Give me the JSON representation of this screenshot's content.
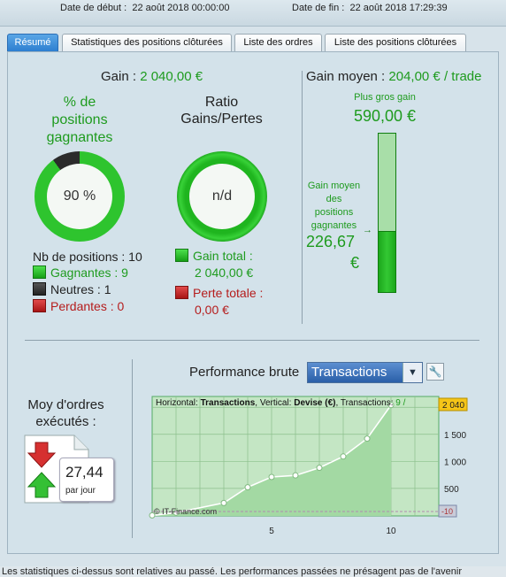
{
  "header": {
    "start_label": "Date de début :",
    "start_value": "22 août 2018 00:00:00",
    "end_label": "Date de fin :",
    "end_value": "22 août 2018 17:29:39"
  },
  "tabs": [
    {
      "label": "Résumé",
      "active": true
    },
    {
      "label": "Statistiques des positions clôturées"
    },
    {
      "label": "Liste des ordres"
    },
    {
      "label": "Liste des positions clôturées"
    }
  ],
  "summary": {
    "gain_label": "Gain",
    "gain_value": "2 040,00 €",
    "pct_title_1": "% de",
    "pct_title_2": "positions",
    "pct_title_3": "gagnantes",
    "pct_value": "90 %",
    "pct_fraction": 0.9,
    "ratio_title_1": "Ratio",
    "ratio_title_2": "Gains/Pertes",
    "ratio_value": "n/d",
    "nb_positions": "Nb de positions : 10",
    "gagnantes": "Gagnantes : 9",
    "neutres": "Neutres : 1",
    "perdantes": "Perdantes : 0",
    "gain_total_label": "Gain total :",
    "gain_total_value": "2 040,00 €",
    "perte_totale_label": "Perte totale :",
    "perte_totale_value": "0,00 €"
  },
  "gain_moyen": {
    "label": "Gain moyen :",
    "value": "204,00 € / trade",
    "plus_gros_label": "Plus gros gain",
    "plus_gros_value": "590,00 €",
    "moyen_label_1": "Gain moyen",
    "moyen_label_2": "des",
    "moyen_label_3": "positions",
    "moyen_label_4": "gagnantes",
    "moyen_value_1": "226,67",
    "moyen_value_2": "€",
    "bar_fraction": 0.384
  },
  "orders": {
    "title_1": "Moy d'ordres",
    "title_2": "exécutés :",
    "value": "27,44",
    "unit": "par jour"
  },
  "performance": {
    "label": "Performance brute",
    "select_value": "Transactions",
    "info_h_label": "Horizontal:",
    "info_h_value": "Transactions",
    "info_v_label": "Vertical:",
    "info_v_value": "Devise (€)",
    "info_t_label": "Transactions:",
    "info_t_value": "9 /",
    "watermark": "© IT-Finance.com"
  },
  "footer": {
    "text": "Les statistiques ci-dessus sont relatives au passé. Les performances passées ne présagent pas de l'avenir"
  },
  "chart_data": {
    "type": "line",
    "x": [
      0,
      1,
      3,
      4,
      5,
      6,
      7,
      8,
      9,
      10
    ],
    "values": [
      0,
      50,
      230,
      520,
      710,
      740,
      880,
      1090,
      1420,
      2040
    ],
    "xticks": [
      5,
      10
    ],
    "xlim": [
      0,
      12
    ],
    "ylim": [
      -10,
      2200
    ],
    "yticks": [
      500,
      1000,
      1500
    ],
    "ytick_labels": [
      "500",
      "1 000",
      "1 500"
    ],
    "last_value_label": "2 040",
    "baseline_label": "-10",
    "grid": true,
    "colors": {
      "line": "#ffffff",
      "fill": "#9fd69f",
      "marker": "#ffffff"
    }
  }
}
